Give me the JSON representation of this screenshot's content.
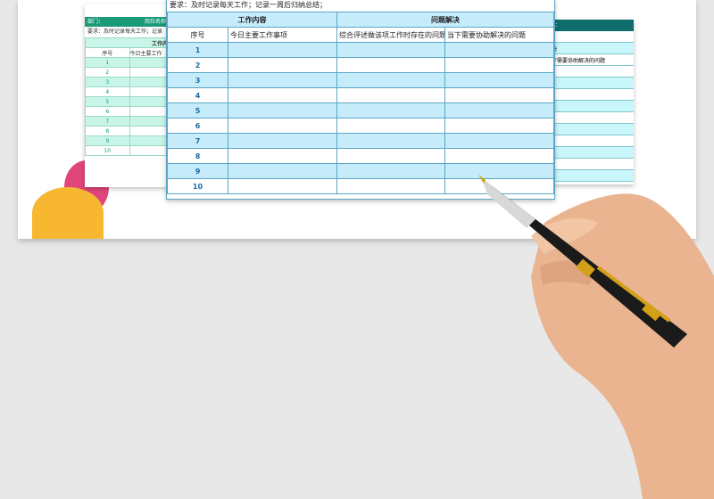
{
  "left_sheet": {
    "dept": "部门：",
    "position": "岗位名称：",
    "requirement": "要求：及时记录每天工作；记录",
    "group": "工作内容",
    "col_no": "序号",
    "col_task": "今日主要工作",
    "rows": [
      "1",
      "2",
      "3",
      "4",
      "5",
      "6",
      "7",
      "8",
      "9",
      "10"
    ]
  },
  "main_sheet": {
    "requirement": "要求：及时记录每天工作；记录一周后归纳总结；",
    "group_work": "工作内容",
    "group_problem": "问题解决",
    "columns": [
      "序号",
      "今日主要工作事项",
      "综合评述做该项工作时存在的问题",
      "当下需要协助解决的问题"
    ],
    "rows": [
      "1",
      "2",
      "3",
      "4",
      "5",
      "6",
      "7",
      "8",
      "9",
      "10"
    ]
  },
  "right_sheet": {
    "header": "：",
    "col_partial": "下需要协助解决的问题",
    "row_partial": "决"
  },
  "colors": {
    "main_accent": "#c6ecfb",
    "left_accent": "#1b9a78",
    "right_accent": "#0e6e6e"
  }
}
